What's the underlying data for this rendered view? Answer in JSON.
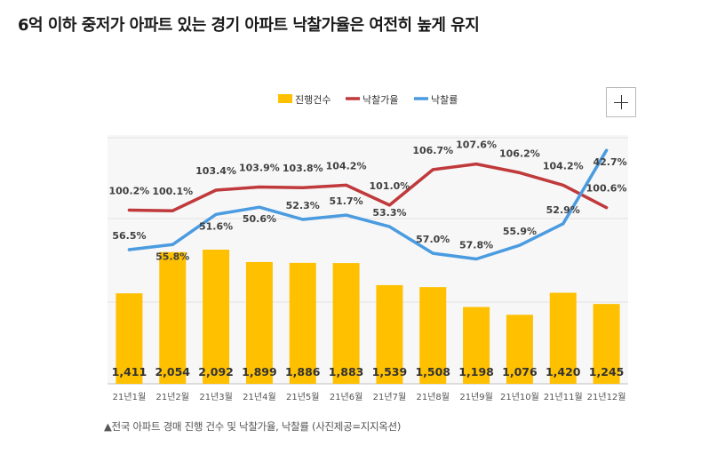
{
  "headline": "6억 이하 중저가 아파트 있는 경기 아파트 낙찰가율은 여전히 높게 유지",
  "caption": "▲전국 아파트 경매 진행 건수 및 낙찰가율, 낙찰률 (사진제공=지지옥션)",
  "chart_data": {
    "type": "bar",
    "categories": [
      "21년1월",
      "21년2월",
      "21년3월",
      "21년4월",
      "21년5월",
      "21년6월",
      "21년7월",
      "21년8월",
      "21년9월",
      "21년10월",
      "21년11월",
      "21년12월"
    ],
    "series": [
      {
        "name": "진행건수",
        "type": "bar",
        "color": "#FFC000",
        "values": [
          1411,
          2054,
          2092,
          1899,
          1886,
          1883,
          1539,
          1508,
          1198,
          1076,
          1420,
          1245
        ],
        "labels": [
          "1,411",
          "2,054",
          "2,092",
          "1,899",
          "1,886",
          "1,883",
          "1,539",
          "1,508",
          "1,198",
          "1,076",
          "1,420",
          "1,245"
        ]
      },
      {
        "name": "낙찰가율",
        "type": "line",
        "color": "#C0393B",
        "values": [
          100.2,
          100.1,
          103.4,
          103.9,
          103.8,
          104.2,
          101.0,
          106.7,
          107.6,
          106.2,
          104.2,
          100.6
        ],
        "labels": [
          "100.2%",
          "100.1%",
          "103.4%",
          "103.9%",
          "103.8%",
          "104.2%",
          "101.0%",
          "106.7%",
          "107.6%",
          "106.2%",
          "104.2%",
          "100.6%"
        ]
      },
      {
        "name": "낙찰률",
        "type": "line",
        "color": "#4A9BE0",
        "values": [
          56.5,
          55.8,
          51.6,
          50.6,
          52.3,
          51.7,
          53.3,
          57.0,
          57.8,
          55.9,
          52.9,
          42.7
        ],
        "labels": [
          "56.5%",
          "55.8%",
          "51.6%",
          "50.6%",
          "52.3%",
          "51.7%",
          "53.3%",
          "57.0%",
          "57.8%",
          "55.9%",
          "52.9%",
          "42.7%"
        ]
      }
    ],
    "legend_position": "top-center",
    "grid": true
  }
}
